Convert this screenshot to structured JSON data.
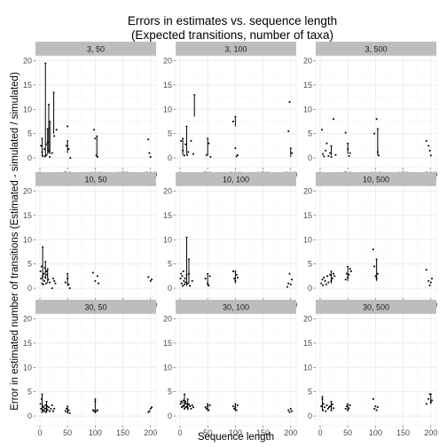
{
  "chart_data": {
    "type": "scatter",
    "title": "Errors in estimates vs. sequence length",
    "subtitle": "(Expected transitions, number of taxa)",
    "xlabel": "Sequence length",
    "ylabel": "Error in estimated number of transitions (Estimated - simulated / simulated)",
    "x_ticks": [
      "0",
      "50",
      "100",
      "150",
      "200"
    ],
    "y_ticks": [
      "0",
      "5",
      "10",
      "15",
      "20"
    ],
    "xlim": [
      -8,
      210
    ],
    "ylim": [
      -2,
      21
    ],
    "grid": true,
    "colors": {
      "panel_bg": "#ffffff",
      "strip_bg": "#bdbdbd",
      "grid": "#ebebeb",
      "points": "#000000"
    },
    "panels": [
      {
        "label": "3, 50",
        "points": [
          [
            2,
            2.5
          ],
          [
            4,
            1.2
          ],
          [
            5,
            0.4
          ],
          [
            8,
            1.8
          ],
          [
            9,
            0.3
          ],
          [
            11,
            2.8
          ],
          [
            12,
            0.6
          ],
          [
            14,
            3.2
          ],
          [
            16,
            1.5
          ],
          [
            18,
            0.2
          ],
          [
            22,
            1.0
          ],
          [
            26,
            4.5
          ],
          [
            30,
            5.8
          ],
          [
            48,
            2.5
          ],
          [
            50,
            6.5
          ],
          [
            52,
            1.8
          ],
          [
            55,
            0.0
          ],
          [
            98,
            5.8
          ],
          [
            100,
            4.0
          ],
          [
            102,
            0.5
          ],
          [
            104,
            0.2
          ],
          [
            196,
            3.8
          ],
          [
            198,
            1.0
          ],
          [
            200,
            0.2
          ]
        ],
        "ranges": [
          [
            10,
            0.2,
            19.5
          ],
          [
            16,
            1.0,
            11.0
          ],
          [
            18,
            0.8,
            7.5
          ],
          [
            25,
            5.0,
            13.5
          ],
          [
            4,
            0.3,
            4.0
          ],
          [
            14,
            0.8,
            6.0
          ],
          [
            50,
            1.0,
            3.5
          ],
          [
            103,
            0.3,
            4.5
          ]
        ]
      },
      {
        "label": "3, 100",
        "points": [
          [
            2,
            3.5
          ],
          [
            5,
            1.5
          ],
          [
            8,
            0.5
          ],
          [
            10,
            2.8
          ],
          [
            13,
            0.6
          ],
          [
            15,
            1.2
          ],
          [
            20,
            3.5
          ],
          [
            24,
            0.8
          ],
          [
            48,
            0.6
          ],
          [
            52,
            3.0
          ],
          [
            55,
            0.2
          ],
          [
            96,
            7.5
          ],
          [
            100,
            2.0
          ],
          [
            102,
            0.3
          ],
          [
            104,
            0.6
          ],
          [
            196,
            5.5
          ],
          [
            198,
            11.5
          ],
          [
            202,
            1.0
          ]
        ],
        "ranges": [
          [
            5,
            0.5,
            4.0
          ],
          [
            12,
            0.8,
            6.5
          ],
          [
            26,
            8.5,
            13.0
          ],
          [
            50,
            0.5,
            4.0
          ],
          [
            100,
            6.5,
            8.5
          ],
          [
            200,
            0.2,
            2.0
          ]
        ]
      },
      {
        "label": "3, 500",
        "points": [
          [
            3,
            5.8
          ],
          [
            5,
            0.8
          ],
          [
            7,
            0.3
          ],
          [
            10,
            1.5
          ],
          [
            12,
            3.0
          ],
          [
            15,
            0.4
          ],
          [
            18,
            1.0
          ],
          [
            20,
            0.2
          ],
          [
            24,
            8.0
          ],
          [
            28,
            0.6
          ],
          [
            46,
            5.2
          ],
          [
            50,
            1.8
          ],
          [
            52,
            0.4
          ],
          [
            54,
            1.0
          ],
          [
            98,
            5.0
          ],
          [
            102,
            8.0
          ],
          [
            104,
            1.2
          ],
          [
            106,
            0.5
          ],
          [
            192,
            3.5
          ],
          [
            196,
            2.5
          ],
          [
            198,
            1.5
          ],
          [
            200,
            0.5
          ]
        ],
        "ranges": [
          [
            20,
            0.5,
            2.5
          ],
          [
            50,
            0.8,
            3.0
          ],
          [
            104,
            0.5,
            6.0
          ]
        ]
      },
      {
        "label": "10, 50",
        "points": [
          [
            1,
            3.5
          ],
          [
            2,
            2.0
          ],
          [
            3,
            4.5
          ],
          [
            4,
            1.0
          ],
          [
            5,
            2.5
          ],
          [
            6,
            0.8
          ],
          [
            7,
            3.0
          ],
          [
            8,
            1.5
          ],
          [
            9,
            4.2
          ],
          [
            10,
            2.2
          ],
          [
            11,
            1.0
          ],
          [
            12,
            3.5
          ],
          [
            13,
            2.8
          ],
          [
            15,
            1.8
          ],
          [
            18,
            1.2
          ],
          [
            22,
            0.0
          ],
          [
            24,
            2.0
          ],
          [
            26,
            1.5
          ],
          [
            28,
            1.0
          ],
          [
            46,
            1.2
          ],
          [
            50,
            2.0
          ],
          [
            52,
            0.8
          ],
          [
            54,
            0.0
          ],
          [
            96,
            3.2
          ],
          [
            100,
            1.5
          ],
          [
            104,
            2.5
          ],
          [
            106,
            1.0
          ],
          [
            196,
            2.3
          ],
          [
            200,
            1.5
          ],
          [
            202,
            1.8
          ]
        ],
        "ranges": [
          [
            5,
            1.5,
            8.5
          ],
          [
            10,
            2.0,
            5.5
          ],
          [
            14,
            1.0,
            4.0
          ],
          [
            50,
            0.5,
            3.0
          ]
        ]
      },
      {
        "label": "10, 100",
        "points": [
          [
            1,
            2.0
          ],
          [
            2,
            3.0
          ],
          [
            3,
            1.0
          ],
          [
            4,
            2.5
          ],
          [
            5,
            0.5
          ],
          [
            6,
            3.5
          ],
          [
            7,
            1.5
          ],
          [
            8,
            0.8
          ],
          [
            9,
            2.0
          ],
          [
            10,
            1.2
          ],
          [
            12,
            2.8
          ],
          [
            14,
            1.0
          ],
          [
            16,
            3.0
          ],
          [
            18,
            0.5
          ],
          [
            22,
            1.5
          ],
          [
            46,
            2.0
          ],
          [
            50,
            1.0
          ],
          [
            52,
            0.6
          ],
          [
            54,
            2.5
          ],
          [
            96,
            3.5
          ],
          [
            98,
            2.0
          ],
          [
            100,
            1.5
          ],
          [
            102,
            2.8
          ],
          [
            104,
            2.2
          ],
          [
            194,
            0.3
          ],
          [
            196,
            1.0
          ],
          [
            198,
            3.0
          ],
          [
            200,
            0.8
          ],
          [
            202,
            1.8
          ]
        ],
        "ranges": [
          [
            12,
            0.5,
            10.5
          ],
          [
            16,
            1.0,
            6.0
          ],
          [
            50,
            0.5,
            3.0
          ],
          [
            100,
            1.0,
            3.5
          ]
        ]
      },
      {
        "label": "10, 500",
        "points": [
          [
            2,
            1.0
          ],
          [
            4,
            1.8
          ],
          [
            5,
            0.6
          ],
          [
            7,
            2.2
          ],
          [
            9,
            1.5
          ],
          [
            11,
            0.8
          ],
          [
            13,
            2.5
          ],
          [
            15,
            1.2
          ],
          [
            18,
            2.8
          ],
          [
            20,
            1.5
          ],
          [
            22,
            2.0
          ],
          [
            24,
            3.0
          ],
          [
            26,
            2.5
          ],
          [
            46,
            1.8
          ],
          [
            48,
            3.0
          ],
          [
            50,
            2.2
          ],
          [
            52,
            2.8
          ],
          [
            54,
            4.0
          ],
          [
            56,
            3.5
          ],
          [
            96,
            8.0
          ],
          [
            98,
            4.5
          ],
          [
            100,
            2.5
          ],
          [
            102,
            2.0
          ],
          [
            104,
            3.0
          ],
          [
            192,
            3.8
          ],
          [
            196,
            1.5
          ],
          [
            198,
            0.6
          ],
          [
            200,
            1.2
          ],
          [
            202,
            2.0
          ]
        ],
        "ranges": [
          [
            20,
            1.0,
            3.5
          ],
          [
            50,
            1.5,
            4.5
          ],
          [
            102,
            1.5,
            6.0
          ]
        ]
      },
      {
        "label": "30, 50",
        "points": [
          [
            1,
            2.5
          ],
          [
            2,
            1.5
          ],
          [
            3,
            3.5
          ],
          [
            4,
            0.8
          ],
          [
            5,
            2.0
          ],
          [
            6,
            1.2
          ],
          [
            7,
            1.8
          ],
          [
            8,
            1.0
          ],
          [
            9,
            1.5
          ],
          [
            10,
            2.2
          ],
          [
            11,
            0.8
          ],
          [
            12,
            1.6
          ],
          [
            13,
            2.0
          ],
          [
            14,
            1.2
          ],
          [
            16,
            1.8
          ],
          [
            18,
            1.0
          ],
          [
            20,
            1.5
          ],
          [
            22,
            2.2
          ],
          [
            24,
            1.0
          ],
          [
            26,
            1.5
          ],
          [
            46,
            1.0
          ],
          [
            48,
            1.5
          ],
          [
            50,
            0.8
          ],
          [
            52,
            1.2
          ],
          [
            54,
            0.6
          ],
          [
            96,
            1.2
          ],
          [
            98,
            1.0
          ],
          [
            100,
            3.0
          ],
          [
            102,
            1.0
          ],
          [
            104,
            1.2
          ],
          [
            196,
            0.8
          ],
          [
            198,
            1.0
          ],
          [
            200,
            1.5
          ],
          [
            202,
            1.8
          ]
        ],
        "ranges": [
          [
            4,
            1.0,
            4.5
          ],
          [
            12,
            0.8,
            3.0
          ],
          [
            50,
            0.5,
            2.0
          ],
          [
            100,
            0.5,
            3.5
          ]
        ]
      },
      {
        "label": "30, 100",
        "points": [
          [
            1,
            2.5
          ],
          [
            2,
            3.0
          ],
          [
            3,
            1.8
          ],
          [
            4,
            2.8
          ],
          [
            5,
            2.0
          ],
          [
            6,
            3.2
          ],
          [
            7,
            2.2
          ],
          [
            8,
            1.5
          ],
          [
            9,
            2.6
          ],
          [
            10,
            3.0
          ],
          [
            11,
            1.8
          ],
          [
            12,
            2.5
          ],
          [
            13,
            2.0
          ],
          [
            14,
            1.6
          ],
          [
            16,
            2.4
          ],
          [
            18,
            2.0
          ],
          [
            20,
            1.5
          ],
          [
            22,
            2.2
          ],
          [
            24,
            1.8
          ],
          [
            46,
            1.8
          ],
          [
            48,
            1.5
          ],
          [
            50,
            2.0
          ],
          [
            52,
            1.2
          ],
          [
            54,
            2.2
          ],
          [
            96,
            2.0
          ],
          [
            98,
            1.5
          ],
          [
            100,
            1.8
          ],
          [
            102,
            1.2
          ],
          [
            104,
            2.2
          ],
          [
            196,
            1.2
          ],
          [
            198,
            0.8
          ],
          [
            200,
            1.5
          ],
          [
            202,
            1.0
          ]
        ],
        "ranges": [
          [
            8,
            1.5,
            4.5
          ],
          [
            14,
            1.2,
            3.5
          ],
          [
            50,
            1.0,
            2.5
          ],
          [
            100,
            1.0,
            2.5
          ]
        ]
      },
      {
        "label": "30, 500",
        "points": [
          [
            2,
            2.0
          ],
          [
            4,
            3.5
          ],
          [
            5,
            1.2
          ],
          [
            6,
            2.5
          ],
          [
            8,
            1.8
          ],
          [
            10,
            1.0
          ],
          [
            12,
            2.2
          ],
          [
            14,
            1.5
          ],
          [
            16,
            1.8
          ],
          [
            18,
            2.0
          ],
          [
            20,
            1.2
          ],
          [
            22,
            2.4
          ],
          [
            24,
            1.6
          ],
          [
            46,
            1.5
          ],
          [
            48,
            2.0
          ],
          [
            50,
            1.2
          ],
          [
            52,
            1.6
          ],
          [
            54,
            2.2
          ],
          [
            96,
            3.5
          ],
          [
            98,
            1.5
          ],
          [
            100,
            2.0
          ],
          [
            102,
            1.2
          ],
          [
            104,
            1.8
          ],
          [
            192,
            2.5
          ],
          [
            196,
            3.5
          ],
          [
            198,
            4.5
          ],
          [
            200,
            2.8
          ],
          [
            202,
            3.2
          ]
        ],
        "ranges": [
          [
            4,
            1.0,
            4.0
          ],
          [
            20,
            1.0,
            3.0
          ],
          [
            50,
            1.0,
            2.5
          ],
          [
            200,
            2.5,
            4.5
          ]
        ]
      }
    ]
  }
}
